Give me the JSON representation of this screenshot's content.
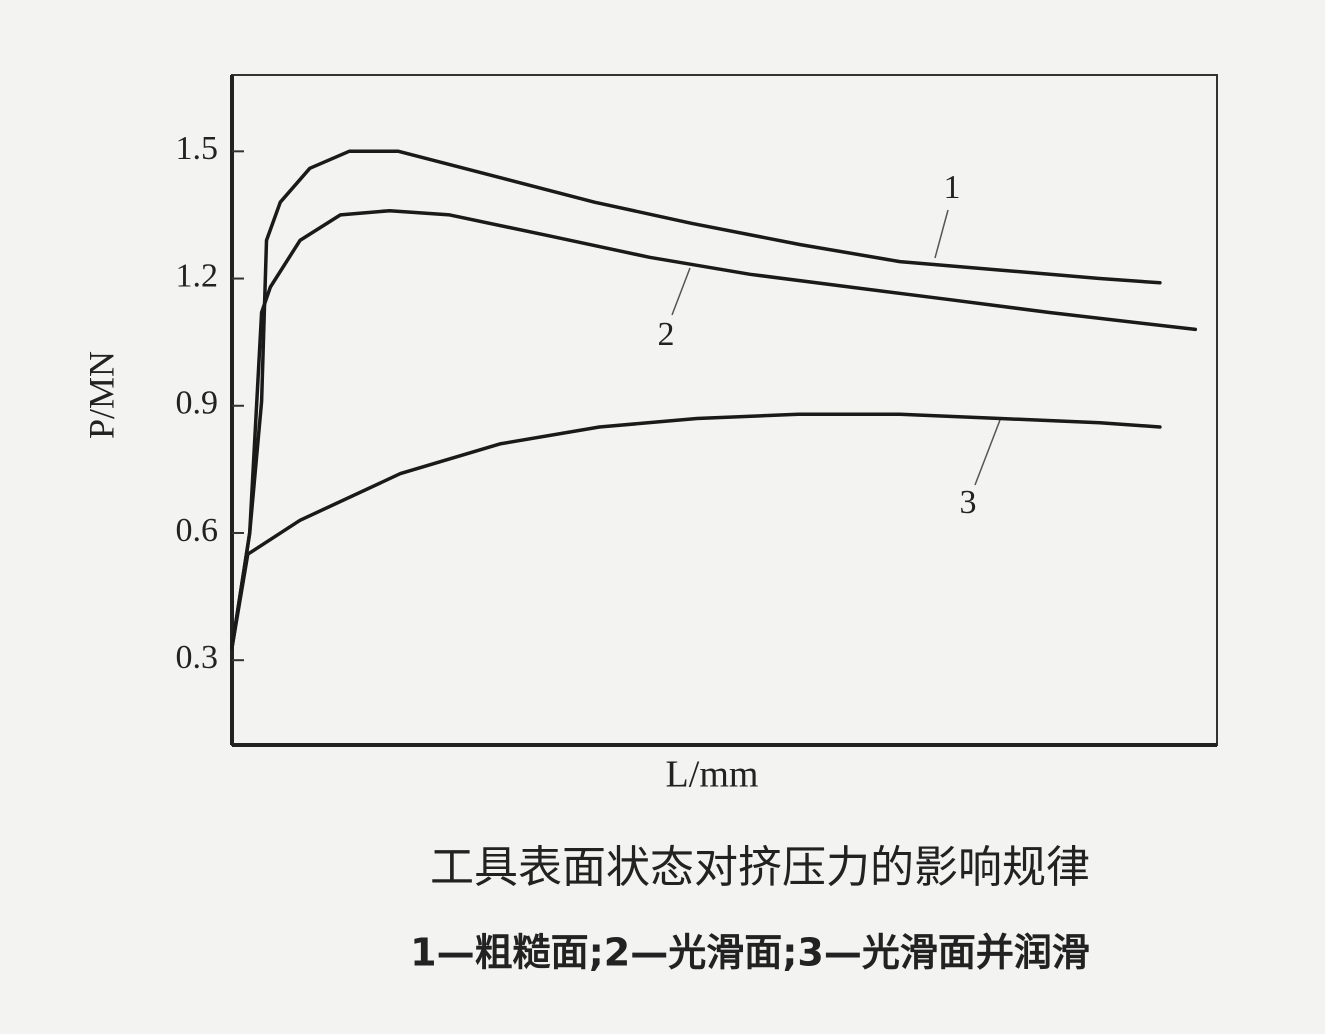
{
  "chart_data": {
    "type": "line",
    "caption": "工具表面状态对挤压力的影响规律",
    "legend_text": "1—粗糙面;2—光滑面;3—光滑面并润滑",
    "xlabel": "L/mm",
    "ylabel": "P/MN",
    "xlim": [
      0,
      100
    ],
    "ylim": [
      0.1,
      1.68
    ],
    "yticks": [
      0.3,
      0.6,
      0.9,
      1.2,
      1.5
    ],
    "color": "#1a1a1a",
    "series": [
      {
        "name": "1",
        "x": [
          0,
          1.8,
          3.0,
          3.5,
          4.9,
          7.9,
          11.9,
          16.9,
          26.9,
          36.8,
          46.7,
          57.7,
          67.8,
          78.0,
          88.1,
          94.2
        ],
        "values": [
          0.33,
          0.6,
          0.91,
          1.29,
          1.38,
          1.46,
          1.5,
          1.5,
          1.44,
          1.38,
          1.33,
          1.28,
          1.24,
          1.22,
          1.2,
          1.19
        ]
      },
      {
        "name": "2",
        "x": [
          0,
          1.8,
          3.0,
          3.9,
          6.9,
          11.0,
          16.0,
          22.1,
          32.3,
          42.4,
          52.6,
          62.7,
          72.9,
          83.0,
          97.8
        ],
        "values": [
          0.33,
          0.6,
          1.12,
          1.18,
          1.29,
          1.35,
          1.36,
          1.35,
          1.3,
          1.25,
          1.21,
          1.18,
          1.15,
          1.12,
          1.08
        ]
      },
      {
        "name": "3",
        "x": [
          0,
          1.6,
          6.9,
          17.1,
          27.2,
          37.3,
          47.2,
          57.5,
          67.8,
          78.0,
          88.1,
          94.2
        ],
        "values": [
          0.33,
          0.55,
          0.63,
          0.74,
          0.81,
          0.85,
          0.87,
          0.88,
          0.88,
          0.87,
          0.86,
          0.85
        ]
      }
    ]
  }
}
